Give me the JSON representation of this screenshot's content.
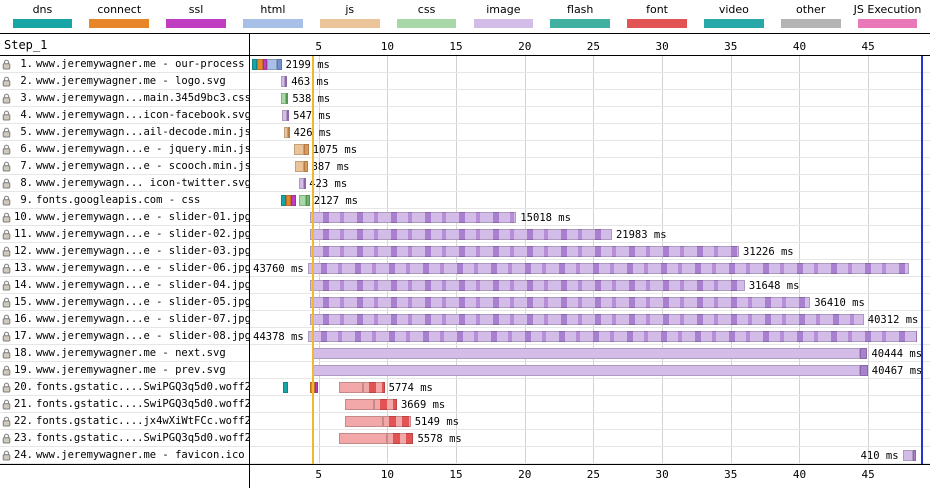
{
  "legend": {
    "items": [
      {
        "label": "dns",
        "color": "#18a5a5"
      },
      {
        "label": "connect",
        "color": "#e8872a"
      },
      {
        "label": "ssl",
        "color": "#c03cc0"
      },
      {
        "label": "html",
        "color": "#a8c0e8"
      },
      {
        "label": "js",
        "color": "#ecc49a"
      },
      {
        "label": "css",
        "color": "#a8d8a8"
      },
      {
        "label": "image",
        "color": "#d4bce9"
      },
      {
        "label": "flash",
        "color": "#40b0a0"
      },
      {
        "label": "font",
        "color": "#e25454"
      },
      {
        "label": "video",
        "color": "#28a8a8"
      },
      {
        "label": "other",
        "color": "#b4b4b4"
      },
      {
        "label": "JS Execution",
        "color": "#e878b8"
      }
    ]
  },
  "panel": {
    "title": "Step_1"
  },
  "axis": {
    "ticks": [
      5,
      10,
      15,
      20,
      25,
      30,
      35,
      40,
      45
    ],
    "max_seconds": 49.5
  },
  "markers": {
    "start_render_s": 4.55,
    "start_render_color": "#f0b830",
    "load_s": 48.9,
    "load_color": "#2238cc"
  },
  "palette": {
    "dns": "#18a5a5",
    "connect": "#e8872a",
    "ssl": "#c03cc0",
    "html_l": "#a8c0e8",
    "html_d": "#7090d0",
    "js_l": "#ecc49a",
    "js_d": "#dc9a56",
    "css_l": "#a8d8a8",
    "css_d": "#68b868",
    "img_l": "#d4bce9",
    "img_d": "#a97fd0",
    "font_l": "#f2a8a8",
    "font_d": "#e25454"
  },
  "rows": [
    {
      "num": "1.",
      "url": "www.jeremywagner.me - our-process",
      "time": "2199 ms",
      "side": "right",
      "segments": [
        [
          "dns",
          0.15,
          0.35
        ],
        [
          "connect",
          0.5,
          0.45
        ],
        [
          "ssl",
          0.95,
          0.3
        ],
        [
          "html_l",
          1.25,
          0.7
        ],
        [
          "html_d",
          1.95,
          0.35
        ]
      ]
    },
    {
      "num": "2.",
      "url": "www.jeremywagner.me - logo.svg",
      "time": "463 ms",
      "side": "right",
      "segments": [
        [
          "img_l",
          2.25,
          0.32
        ],
        [
          "img_d",
          2.57,
          0.14
        ]
      ]
    },
    {
      "num": "3.",
      "url": "www.jeremywagn...main.345d9bc3.css",
      "time": "538 ms",
      "side": "right",
      "segments": [
        [
          "css_l",
          2.25,
          0.38
        ],
        [
          "css_d",
          2.63,
          0.16
        ]
      ]
    },
    {
      "num": "4.",
      "url": "www.jeremywagn...icon-facebook.svg",
      "time": "547 ms",
      "side": "right",
      "segments": [
        [
          "img_l",
          2.3,
          0.38
        ],
        [
          "img_d",
          2.68,
          0.17
        ]
      ]
    },
    {
      "num": "5.",
      "url": "www.jeremywagn...ail-decode.min.js",
      "time": "426 ms",
      "side": "right",
      "segments": [
        [
          "js_l",
          2.45,
          0.3
        ],
        [
          "js_d",
          2.75,
          0.13
        ]
      ]
    },
    {
      "num": "6.",
      "url": "www.jeremywagn...e - jquery.min.js",
      "time": "1075 ms",
      "side": "right",
      "segments": [
        [
          "js_l",
          3.2,
          0.75
        ],
        [
          "js_d",
          3.95,
          0.33
        ]
      ]
    },
    {
      "num": "7.",
      "url": "www.jeremywagn...e - scooch.min.js",
      "time": "887 ms",
      "side": "right",
      "segments": [
        [
          "js_l",
          3.3,
          0.62
        ],
        [
          "js_d",
          3.92,
          0.27
        ]
      ]
    },
    {
      "num": "8.",
      "url": "www.jeremywagn... icon-twitter.svg",
      "time": "423 ms",
      "side": "right",
      "segments": [
        [
          "img_l",
          3.6,
          0.3
        ],
        [
          "img_d",
          3.9,
          0.12
        ]
      ]
    },
    {
      "num": "9.",
      "url": "fonts.googleapis.com - css",
      "time": "2127 ms",
      "side": "right",
      "segments": [
        [
          "dns",
          2.25,
          0.35
        ],
        [
          "connect",
          2.6,
          0.38
        ],
        [
          "ssl",
          2.98,
          0.35
        ],
        [
          "css_l",
          3.55,
          0.5
        ],
        [
          "css_d",
          4.05,
          0.3
        ]
      ]
    },
    {
      "num": "10.",
      "url": "www.jeremywagn...e - slider-01.jpg",
      "time": "15018 ms",
      "side": "right",
      "segments": [
        [
          "img_tex",
          4.37,
          15.02
        ]
      ]
    },
    {
      "num": "11.",
      "url": "www.jeremywagn...e - slider-02.jpg",
      "time": "21983 ms",
      "side": "right",
      "segments": [
        [
          "img_tex",
          4.37,
          21.98
        ]
      ]
    },
    {
      "num": "12.",
      "url": "www.jeremywagn...e - slider-03.jpg",
      "time": "31226 ms",
      "side": "right",
      "segments": [
        [
          "img_tex",
          4.37,
          31.23
        ]
      ]
    },
    {
      "num": "13.",
      "url": "www.jeremywagn...e - slider-06.jpg",
      "time": "43760 ms",
      "side": "left",
      "segments": [
        [
          "img_tex",
          4.2,
          43.76
        ]
      ]
    },
    {
      "num": "14.",
      "url": "www.jeremywagn...e - slider-04.jpg",
      "time": "31648 ms",
      "side": "right",
      "segments": [
        [
          "img_tex",
          4.37,
          31.65
        ]
      ]
    },
    {
      "num": "15.",
      "url": "www.jeremywagn...e - slider-05.jpg",
      "time": "36410 ms",
      "side": "right",
      "segments": [
        [
          "img_tex",
          4.37,
          36.41
        ]
      ]
    },
    {
      "num": "16.",
      "url": "www.jeremywagn...e - slider-07.jpg",
      "time": "40312 ms",
      "side": "right",
      "segments": [
        [
          "img_tex",
          4.37,
          40.31
        ]
      ]
    },
    {
      "num": "17.",
      "url": "www.jeremywagn...e - slider-08.jpg",
      "time": "44378 ms",
      "side": "left",
      "segments": [
        [
          "img_tex",
          4.2,
          44.38
        ]
      ]
    },
    {
      "num": "18.",
      "url": "www.jeremywagner.me - next.svg",
      "time": "40444 ms",
      "side": "right",
      "segments": [
        [
          "img_l",
          4.5,
          39.9
        ],
        [
          "img_d",
          44.4,
          0.55
        ]
      ]
    },
    {
      "num": "19.",
      "url": "www.jeremywagner.me - prev.svg",
      "time": "40467 ms",
      "side": "right",
      "segments": [
        [
          "img_l",
          4.5,
          39.92
        ],
        [
          "img_d",
          44.42,
          0.55
        ]
      ]
    },
    {
      "num": "20.",
      "url": "fonts.gstatic....SwiPGQ3q5d0.woff2",
      "time": "5774 ms",
      "side": "right",
      "segments": [
        [
          "dns",
          2.4,
          0.35
        ],
        [
          "connect",
          4.4,
          0.3
        ],
        [
          "ssl",
          4.7,
          0.25
        ],
        [
          "font_l",
          6.5,
          1.7
        ],
        [
          "font_tex",
          8.2,
          1.6
        ]
      ]
    },
    {
      "num": "21.",
      "url": "fonts.gstatic....SwiPGQ3q5d0.woff2",
      "time": "3669 ms",
      "side": "right",
      "segments": [
        [
          "font_l",
          6.9,
          2.1
        ],
        [
          "font_tex",
          9.0,
          1.7
        ]
      ]
    },
    {
      "num": "22.",
      "url": "fonts.gstatic....jx4wXiWtFCc.woff2",
      "time": "5149 ms",
      "side": "right",
      "segments": [
        [
          "font_l",
          6.9,
          2.8
        ],
        [
          "font_tex",
          9.7,
          2.0
        ]
      ]
    },
    {
      "num": "23.",
      "url": "fonts.gstatic....SwiPGQ3q5d0.woff2",
      "time": "5578 ms",
      "side": "right",
      "segments": [
        [
          "font_l",
          6.5,
          3.5
        ],
        [
          "font_tex",
          10.0,
          1.9
        ]
      ]
    },
    {
      "num": "24.",
      "url": "www.jeremywagner.me - favicon.ico",
      "time": "410 ms",
      "side": "left",
      "segments": [
        [
          "img_l",
          47.5,
          0.75
        ],
        [
          "img_d",
          48.25,
          0.25
        ]
      ]
    }
  ]
}
